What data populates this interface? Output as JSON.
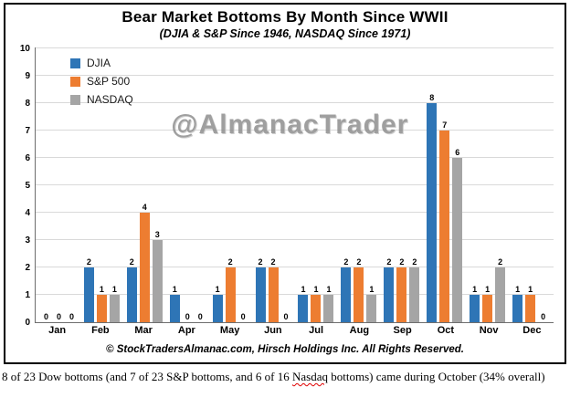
{
  "chart": {
    "title": "Bear Market Bottoms By Month Since WWII",
    "subtitle": "(DJIA & S&P Since 1946, NASDAQ Since 1971)",
    "watermark": "@AlmanacTrader",
    "footer": "© StockTradersAlmanac.com, Hirsch Holdings Inc. All Rights Reserved."
  },
  "caption_parts": [
    {
      "text": "8 of 23 Dow bottoms (and 7 of 23 S&P bottoms, and 6 of 16 ",
      "squiggle": false
    },
    {
      "text": "Nasdaq",
      "squiggle": true
    },
    {
      "text": " bottoms) came during October (34% overall)",
      "squiggle": false
    }
  ],
  "chart_data": {
    "type": "bar",
    "title": "Bear Market Bottoms By Month Since WWII",
    "subtitle": "(DJIA & S&P Since 1946, NASDAQ Since 1971)",
    "categories": [
      "Jan",
      "Feb",
      "Mar",
      "Apr",
      "May",
      "Jun",
      "Jul",
      "Aug",
      "Sep",
      "Oct",
      "Nov",
      "Dec"
    ],
    "series": [
      {
        "name": "DJIA",
        "color": "#2e75b6",
        "values": [
          0,
          2,
          2,
          1,
          1,
          2,
          1,
          2,
          2,
          8,
          1,
          1
        ]
      },
      {
        "name": "S&P 500",
        "color": "#ed7d31",
        "values": [
          0,
          1,
          4,
          0,
          2,
          2,
          1,
          2,
          2,
          7,
          1,
          1
        ]
      },
      {
        "name": "NASDAQ",
        "color": "#a5a5a5",
        "values": [
          0,
          1,
          3,
          0,
          0,
          0,
          1,
          1,
          2,
          6,
          2,
          0
        ]
      }
    ],
    "xlabel": "",
    "ylabel": "",
    "ylim": [
      0,
      10
    ],
    "ytick_step": 1,
    "grid": true,
    "legend_position": "top-left",
    "data_labels": true
  }
}
